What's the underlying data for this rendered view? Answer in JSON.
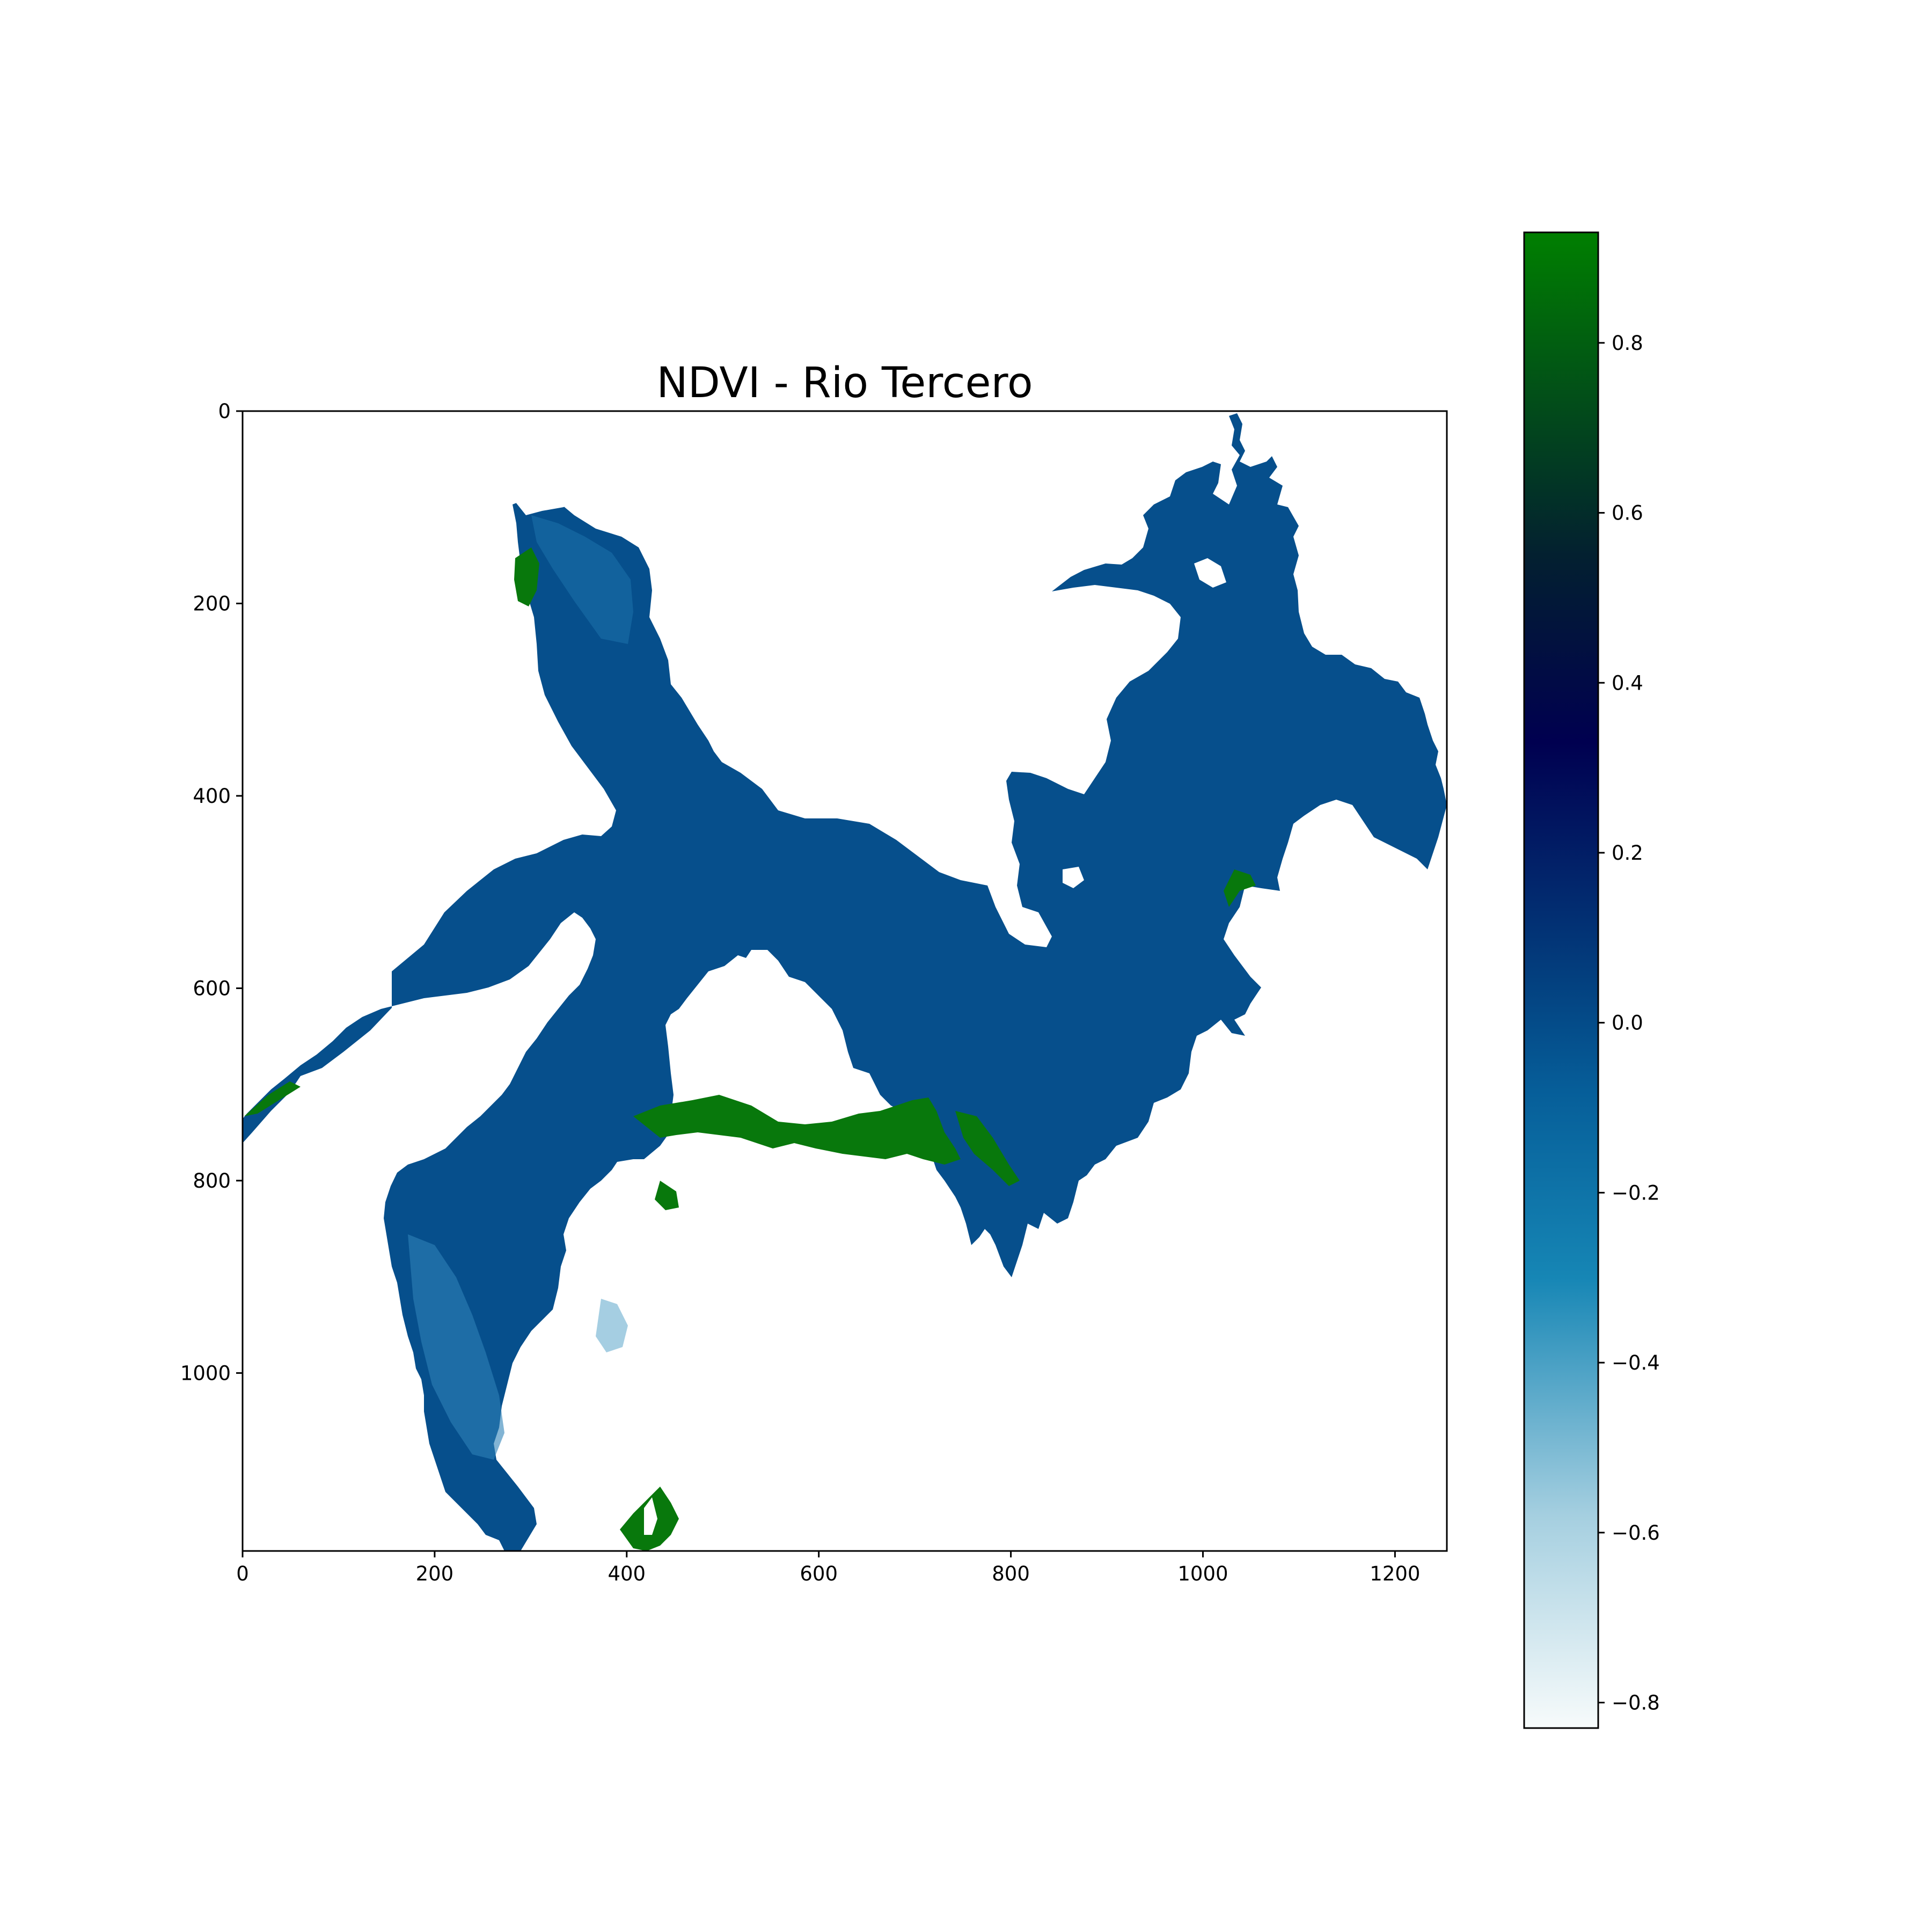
{
  "chart_data": {
    "type": "heatmap",
    "title": "NDVI - Rio Tercero",
    "xlabel": "",
    "ylabel": "",
    "xlim": [
      0,
      1254
    ],
    "ylim": [
      1185,
      0
    ],
    "x_ticks": [
      0,
      200,
      400,
      600,
      800,
      1000,
      1200
    ],
    "x_tick_labels": [
      "0",
      "200",
      "400",
      "600",
      "800",
      "1000",
      "1200"
    ],
    "y_ticks": [
      0,
      200,
      400,
      600,
      800,
      1000
    ],
    "y_tick_labels": [
      "0",
      "200",
      "400",
      "600",
      "800",
      "1000"
    ],
    "colorbar": {
      "range": [
        -0.83,
        0.93
      ],
      "ticks": [
        -0.8,
        -0.6,
        -0.4,
        -0.2,
        0.0,
        0.2,
        0.4,
        0.6,
        0.8
      ],
      "tick_labels": [
        "−0.8",
        "−0.6",
        "−0.4",
        "−0.2",
        "0.0",
        "0.2",
        "0.4",
        "0.6",
        "0.8"
      ],
      "stops": [
        {
          "value": -0.83,
          "color": "#f7fbfb"
        },
        {
          "value": -0.58,
          "color": "#a5cfe0"
        },
        {
          "value": -0.3,
          "color": "#1686b5"
        },
        {
          "value": -0.08,
          "color": "#065e99"
        },
        {
          "value": 0.05,
          "color": "#03407f"
        },
        {
          "value": 0.33,
          "color": "#000050"
        },
        {
          "value": 0.55,
          "color": "#032030"
        },
        {
          "value": 0.93,
          "color": "#007f00"
        }
      ]
    },
    "map_colors": {
      "water": "#064f8c",
      "water_light": "#1e72ac",
      "water_lightest": "#5aa3c8",
      "vegetation": "#08780c"
    }
  }
}
